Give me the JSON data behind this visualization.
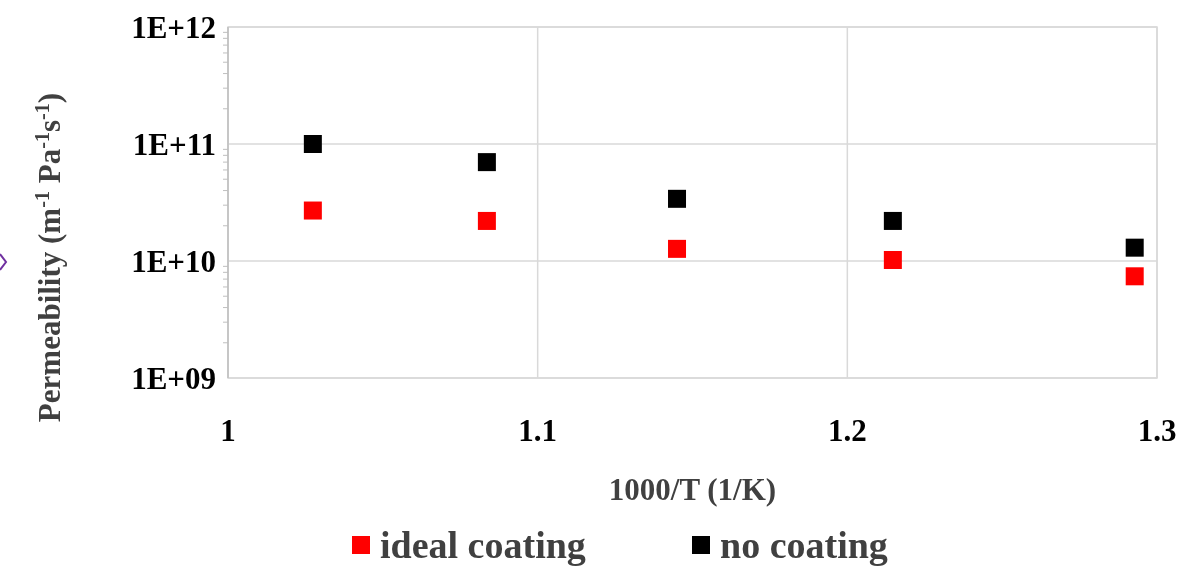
{
  "chart_data": {
    "type": "scatter",
    "xlabel": "1000/T (1/K)",
    "ylabel": "Permeability (m$^{-1}$ Pa$^{-1}$s$^{-1}$)",
    "x": [
      1.0274,
      1.0836,
      1.145,
      1.2147,
      1.2928
    ],
    "series": [
      {
        "name": "ideal coating",
        "color": "#ff0000",
        "values": [
          27000000000.0,
          22000000000.0,
          12700000000.0,
          10200000000.0,
          7400000000.0
        ]
      },
      {
        "name": "no coating",
        "color": "#000000",
        "values": [
          100000000000.0,
          70000000000.0,
          34000000000.0,
          22000000000.0,
          13000000000.0
        ]
      }
    ],
    "log": "y",
    "xlim": [
      1,
      1.3
    ],
    "xticks": [
      1,
      1.1,
      1.2,
      1.3
    ],
    "ylim": [
      1000000000.0,
      1000000000000.0
    ],
    "yticks": [
      {
        "value": 1000000000.0,
        "label": "1E+09"
      },
      {
        "value": 2000000000.0,
        "label": null
      },
      {
        "value": 3000000000.0,
        "label": null
      },
      {
        "value": 4000000000.0,
        "label": null
      },
      {
        "value": 5000000000.0,
        "label": null
      },
      {
        "value": 6000000000.0,
        "label": null
      },
      {
        "value": 7000000000.0,
        "label": null
      },
      {
        "value": 8000000000.0,
        "label": null
      },
      {
        "value": 9000000000.0,
        "label": null
      },
      {
        "value": 10000000000.0,
        "label": "1E+10"
      },
      {
        "value": 20000000000.0,
        "label": null
      },
      {
        "value": 30000000000.0,
        "label": null
      },
      {
        "value": 40000000000.0,
        "label": null
      },
      {
        "value": 50000000000.0,
        "label": null
      },
      {
        "value": 60000000000.0,
        "label": null
      },
      {
        "value": 70000000000.0,
        "label": null
      },
      {
        "value": 80000000000.0,
        "label": null
      },
      {
        "value": 90000000000.0,
        "label": null
      },
      {
        "value": 100000000000.0,
        "label": "1E+11"
      },
      {
        "value": 200000000000.0,
        "label": null
      },
      {
        "value": 300000000000.0,
        "label": null
      },
      {
        "value": 400000000000.0,
        "label": null
      },
      {
        "value": 500000000000.0,
        "label": null
      },
      {
        "value": 600000000000.0,
        "label": null
      },
      {
        "value": 700000000000.0,
        "label": null
      },
      {
        "value": 800000000000.0,
        "label": null
      },
      {
        "value": 900000000000.0,
        "label": null
      },
      {
        "value": 1000000000000.0,
        "label": "1E+12"
      }
    ],
    "grid": true,
    "legend": "bottom",
    "marker": "square"
  }
}
